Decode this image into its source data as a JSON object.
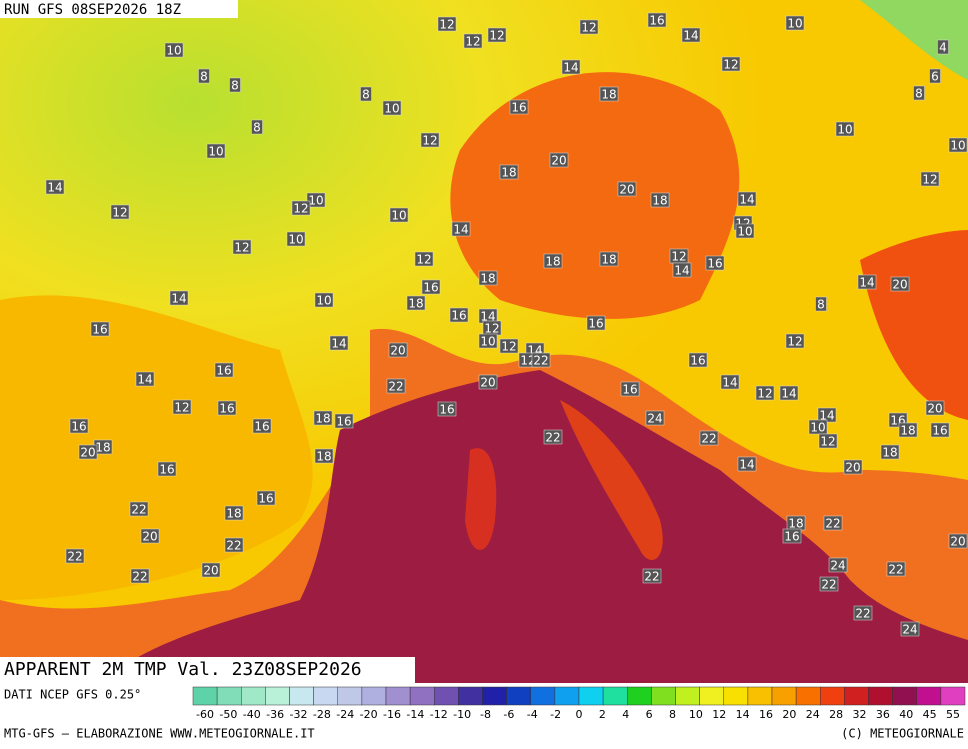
{
  "header": {
    "run": "RUN GFS 08SEP2026 18Z"
  },
  "labels": [
    12,
    12,
    12,
    12,
    16,
    14,
    10,
    4,
    10,
    8,
    8,
    14,
    12,
    6,
    8,
    10,
    16,
    18,
    8,
    8,
    10,
    12,
    10,
    10,
    20,
    18,
    20,
    18,
    14,
    12,
    10,
    12,
    14,
    12,
    10,
    14,
    12,
    10,
    10,
    12,
    12,
    18,
    18,
    12,
    14,
    16,
    18,
    16,
    14,
    10,
    18,
    14,
    20,
    8,
    16,
    14,
    12,
    16,
    16,
    10,
    12,
    14,
    20,
    12,
    14,
    12,
    22,
    16,
    14,
    16,
    20,
    22,
    14,
    16,
    12,
    14,
    12,
    16,
    16,
    24,
    18,
    16,
    16,
    18,
    20,
    16,
    14,
    10,
    16,
    20,
    18,
    16,
    22,
    22,
    12,
    18,
    18,
    16,
    14,
    20,
    16,
    22,
    18,
    20,
    18,
    22,
    16,
    22,
    20,
    22,
    24,
    22,
    20,
    22,
    22,
    22,
    22,
    24
  ],
  "footer": {
    "title": "APPARENT 2M TMP Val. 23Z08SEP2026",
    "source": "DATI NCEP GFS 0.25°",
    "credit": "MTG-GFS — ELABORAZIONE WWW.METEOGIORNALE.IT",
    "copyright": "(C) METEOGIORNALE"
  },
  "colorbar": {
    "ticks": [
      -60,
      -50,
      -40,
      -36,
      -32,
      -28,
      -24,
      -20,
      -16,
      -14,
      -12,
      -10,
      -8,
      -6,
      -4,
      -2,
      0,
      2,
      4,
      6,
      8,
      10,
      12,
      14,
      16,
      20,
      24,
      28,
      32,
      36,
      40,
      45,
      55
    ],
    "colors": [
      "#5fd3a8",
      "#80ddb8",
      "#a0e8c8",
      "#b8f0d8",
      "#c8e8f0",
      "#c8d8f0",
      "#c0c8e8",
      "#b0b0e0",
      "#a090d0",
      "#9070c0",
      "#7050b0",
      "#4030a0",
      "#2020a8",
      "#1040c0",
      "#1070e0",
      "#10a0f0",
      "#10d0f0",
      "#20e0a0",
      "#20d020",
      "#80e020",
      "#c0f020",
      "#f0f020",
      "#f8e000",
      "#f8c000",
      "#f8a000",
      "#f87000",
      "#f04010",
      "#d02020",
      "#b01030",
      "#901050",
      "#c01090",
      "#e040c0"
    ]
  }
}
